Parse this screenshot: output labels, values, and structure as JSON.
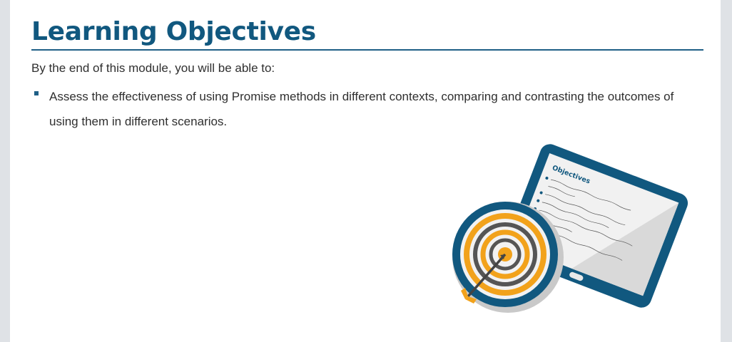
{
  "slide": {
    "title": "Learning Objectives",
    "intro": "By the end of this module, you will be able to:",
    "bullets": [
      "Assess the effectiveness of using Promise methods in different contexts, comparing and contrasting the outcomes of using them in different scenarios."
    ]
  },
  "illustration": {
    "tablet_heading": "Objectives"
  },
  "colors": {
    "title": "#11587f",
    "accent_blue": "#1f5f86",
    "accent_orange": "#f2a21b"
  }
}
